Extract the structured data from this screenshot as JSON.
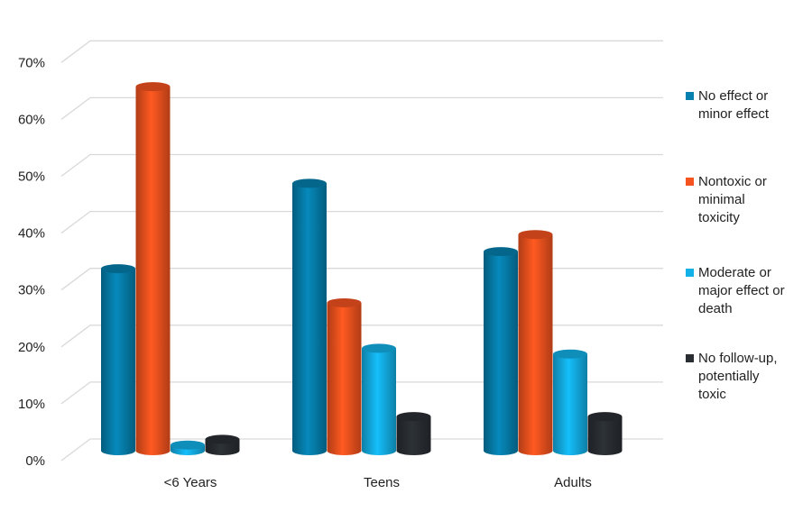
{
  "chart_data": {
    "type": "bar",
    "title": "",
    "xlabel": "",
    "ylabel": "",
    "ylim": [
      0,
      70
    ],
    "yticks": [
      "0%",
      "10%",
      "20%",
      "30%",
      "40%",
      "50%",
      "60%",
      "70%"
    ],
    "categories": [
      "<6 Years",
      "Teens",
      "Adults"
    ],
    "grid": true,
    "legend_position": "right",
    "style": "3d-cylinder",
    "series": [
      {
        "name": "No effect or minor effect",
        "color": "#0680AE",
        "values": [
          32,
          47,
          35
        ]
      },
      {
        "name": "Nontoxic or minimal toxicity",
        "color": "#F5531F",
        "values": [
          64,
          26,
          38
        ]
      },
      {
        "name": "Moderate or major effect or death",
        "color": "#13B1E8",
        "values": [
          1,
          18,
          17
        ]
      },
      {
        "name": "No follow-up, potentially toxic",
        "color": "#2A2E33",
        "values": [
          2,
          6,
          6
        ]
      }
    ]
  },
  "legend": {
    "items": [
      {
        "label": "No effect or\nminor effect",
        "color": "#0680AE"
      },
      {
        "label": "Nontoxic or\nminimal\ntoxicity",
        "color": "#F5531F"
      },
      {
        "label": "Moderate or\nmajor effect or\ndeath",
        "color": "#13B1E8"
      },
      {
        "label": "No follow-up,\npotentially\ntoxic",
        "color": "#2A2E33"
      }
    ]
  }
}
